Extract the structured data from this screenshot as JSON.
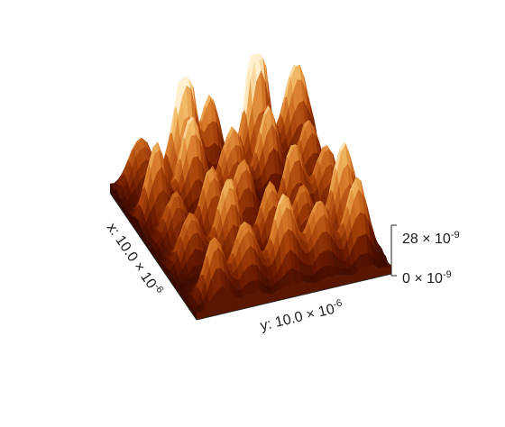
{
  "view": {
    "type": "3d-surface",
    "colormap": [
      "#2a0400",
      "#6a1a00",
      "#a8430a",
      "#d77a2a",
      "#f0b45e",
      "#fff1cf"
    ],
    "background": "#ffffff"
  },
  "axes": {
    "x_label": {
      "text": "x: 10.0 × 10",
      "exp": "-6"
    },
    "y_label": {
      "text": "y: 10.0 × 10",
      "exp": "-6"
    },
    "z_top": {
      "text": "28 × 10",
      "exp": "-9"
    },
    "z_bottom": {
      "text": "0 × 10",
      "exp": "-9"
    }
  },
  "surface": {
    "x_range": [
      0,
      10.0
    ],
    "y_range": [
      0,
      10.0
    ],
    "z_range": [
      0,
      28
    ],
    "peak_grid": "5 x 5"
  }
}
